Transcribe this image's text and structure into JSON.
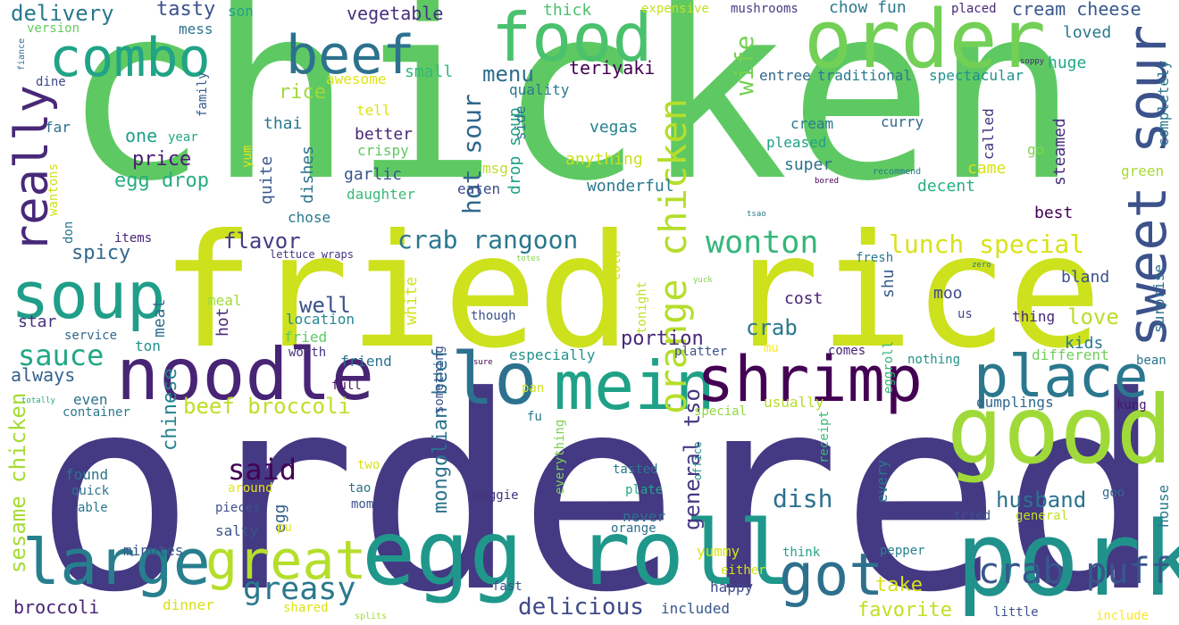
{
  "background": "#ffffff",
  "words": [
    {
      "text": "chicken",
      "color": "#5ec962",
      "rotate": false
    },
    {
      "text": "ordered",
      "color": "#443983",
      "rotate": false
    },
    {
      "text": "fried rice",
      "color": "#cde11d",
      "rotate": false
    },
    {
      "text": "pork",
      "color": "#21918c",
      "rotate": false
    },
    {
      "text": "good",
      "color": "#a0da39",
      "rotate": false
    },
    {
      "text": "egg roll",
      "color": "#1f988b",
      "rotate": false
    },
    {
      "text": "noodle",
      "color": "#482475",
      "rotate": false
    },
    {
      "text": "lo",
      "color": "#2c728e",
      "rotate": false
    },
    {
      "text": "mein",
      "color": "#1fa187",
      "rotate": false
    },
    {
      "text": "shrimp",
      "color": "#440154",
      "rotate": false
    },
    {
      "text": "place",
      "color": "#2a788e",
      "rotate": false
    },
    {
      "text": "order",
      "color": "#73d056",
      "rotate": false
    },
    {
      "text": "food",
      "color": "#4ac16d",
      "rotate": false
    },
    {
      "text": "sweet sour",
      "color": "#3b528b",
      "rotate": true
    },
    {
      "text": "large",
      "color": "#277f8e",
      "rotate": false
    },
    {
      "text": "great",
      "color": "#b5de2b",
      "rotate": false
    },
    {
      "text": "got",
      "color": "#2d708e",
      "rotate": false
    },
    {
      "text": "soup",
      "color": "#1f9e89",
      "rotate": false
    },
    {
      "text": "combo",
      "color": "#20a386",
      "rotate": false
    },
    {
      "text": "beef",
      "color": "#2c728e",
      "rotate": false
    },
    {
      "text": "really",
      "color": "#482878",
      "rotate": true
    },
    {
      "text": "crab puff",
      "color": "#39568c",
      "rotate": false
    },
    {
      "text": "wonton",
      "color": "#35b779",
      "rotate": false
    },
    {
      "text": "orange chicken",
      "color": "#b5de2b",
      "rotate": true
    },
    {
      "text": "greasy",
      "color": "#2a788e",
      "rotate": false
    },
    {
      "text": "crab rangoon",
      "color": "#2a788e",
      "rotate": false
    },
    {
      "text": "lunch special",
      "color": "#d8e219",
      "rotate": false
    },
    {
      "text": "sauce",
      "color": "#22a884",
      "rotate": false
    },
    {
      "text": "said",
      "color": "#440154",
      "rotate": false
    },
    {
      "text": "dish",
      "color": "#2c728e",
      "rotate": false
    },
    {
      "text": "husband",
      "color": "#2c728e",
      "rotate": false
    },
    {
      "text": "delicious",
      "color": "#3e4a89",
      "rotate": false
    },
    {
      "text": "wife",
      "color": "#75d054",
      "rotate": true
    },
    {
      "text": "hot sour",
      "color": "#31688e",
      "rotate": true
    },
    {
      "text": "beef broccoli",
      "color": "#bddf26",
      "rotate": false
    },
    {
      "text": "menu",
      "color": "#2e6e8e",
      "rotate": false
    },
    {
      "text": "flavor",
      "color": "#433e85",
      "rotate": false
    },
    {
      "text": "well",
      "color": "#3b528b",
      "rotate": false
    },
    {
      "text": "take",
      "color": "#d8e219",
      "rotate": false
    },
    {
      "text": "favorite",
      "color": "#c2df23",
      "rotate": false
    },
    {
      "text": "broccoli",
      "color": "#482475",
      "rotate": false
    },
    {
      "text": "crab",
      "color": "#2a788e",
      "rotate": false
    },
    {
      "text": "love",
      "color": "#b8de29",
      "rotate": false
    },
    {
      "text": "price",
      "color": "#481c6e",
      "rotate": false
    },
    {
      "text": "portion",
      "color": "#482878",
      "rotate": false
    },
    {
      "text": "mongolian beef",
      "color": "#2c728e",
      "rotate": true
    },
    {
      "text": "general tso",
      "color": "#443983",
      "rotate": true
    },
    {
      "text": "sesame chicken",
      "color": "#a5db36",
      "rotate": true
    },
    {
      "text": "chinese",
      "color": "#26828e",
      "rotate": true
    },
    {
      "text": "always",
      "color": "#35608d",
      "rotate": false
    },
    {
      "text": "spicy",
      "color": "#31688e",
      "rotate": false
    },
    {
      "text": "egg drop",
      "color": "#28ae80",
      "rotate": false
    },
    {
      "text": "delivery",
      "color": "#2a788e",
      "rotate": false
    },
    {
      "text": "tasty",
      "color": "#3b528b",
      "rotate": false
    },
    {
      "text": "rice",
      "color": "#a0da39",
      "rotate": false
    },
    {
      "text": "vegetable",
      "color": "#46327e",
      "rotate": false
    },
    {
      "text": "cream cheese",
      "color": "#38598c",
      "rotate": false
    },
    {
      "text": "chow fun",
      "color": "#2a788e",
      "rotate": false
    },
    {
      "text": "teriyaki",
      "color": "#440154",
      "rotate": false
    },
    {
      "text": "wonderful",
      "color": "#2a788e",
      "rotate": false
    },
    {
      "text": "better",
      "color": "#482878",
      "rotate": false
    },
    {
      "text": "garlic",
      "color": "#39568c",
      "rotate": false
    },
    {
      "text": "super",
      "color": "#2d708e",
      "rotate": false
    },
    {
      "text": "decent",
      "color": "#29af7f",
      "rotate": false
    },
    {
      "text": "came",
      "color": "#d8e219",
      "rotate": false
    },
    {
      "text": "best",
      "color": "#440154",
      "rotate": false
    },
    {
      "text": "steamed",
      "color": "#46327e",
      "rotate": true
    },
    {
      "text": "bland",
      "color": "#3b528b",
      "rotate": false
    },
    {
      "text": "cost",
      "color": "#482475",
      "rotate": false
    },
    {
      "text": "moo",
      "color": "#3e4a89",
      "rotate": false
    },
    {
      "text": "shu",
      "color": "#365c8d",
      "rotate": true
    },
    {
      "text": "kids",
      "color": "#2a788e",
      "rotate": false
    },
    {
      "text": "huge",
      "color": "#22a884",
      "rotate": false
    },
    {
      "text": "loved",
      "color": "#2a788e",
      "rotate": false
    },
    {
      "text": "one",
      "color": "#1f9e89",
      "rotate": false
    },
    {
      "text": "small",
      "color": "#35b779",
      "rotate": false
    },
    {
      "text": "quality",
      "color": "#2a788e",
      "rotate": false
    },
    {
      "text": "vegas",
      "color": "#26828e",
      "rotate": false
    },
    {
      "text": "anything",
      "color": "#c8e020",
      "rotate": false
    },
    {
      "text": "drop soup",
      "color": "#1fa187",
      "rotate": true
    },
    {
      "text": "eaten",
      "color": "#3e4a89",
      "rotate": false
    },
    {
      "text": "thai",
      "color": "#2a788e",
      "rotate": false
    },
    {
      "text": "quite",
      "color": "#38598c",
      "rotate": true
    },
    {
      "text": "dishes",
      "color": "#2c728e",
      "rotate": true
    },
    {
      "text": "chose",
      "color": "#2a788e",
      "rotate": false
    },
    {
      "text": "crispy",
      "color": "#5ec962",
      "rotate": false
    },
    {
      "text": "daughter",
      "color": "#3aba76",
      "rotate": false
    },
    {
      "text": "tell",
      "color": "#dde318",
      "rotate": false
    },
    {
      "text": "awesome",
      "color": "#dde318",
      "rotate": false
    },
    {
      "text": "msg",
      "color": "#bddf26",
      "rotate": false
    },
    {
      "text": "side",
      "color": "#2c728e",
      "rotate": true
    },
    {
      "text": "cream",
      "color": "#2a788e",
      "rotate": false
    },
    {
      "text": "pleased",
      "color": "#1fa187",
      "rotate": false
    },
    {
      "text": "curry",
      "color": "#31688e",
      "rotate": false
    },
    {
      "text": "called",
      "color": "#46327e",
      "rotate": true
    },
    {
      "text": "go",
      "color": "#84d44b",
      "rotate": false
    },
    {
      "text": "green",
      "color": "#a8db34",
      "rotate": false
    },
    {
      "text": "completely",
      "color": "#2a788e",
      "rotate": true
    },
    {
      "text": "entree",
      "color": "#31688e",
      "rotate": false
    },
    {
      "text": "traditional",
      "color": "#2a788e",
      "rotate": false
    },
    {
      "text": "spectacular",
      "color": "#21918c",
      "rotate": false
    },
    {
      "text": "mushrooms",
      "color": "#433e85",
      "rotate": false
    },
    {
      "text": "expensive",
      "color": "#c8e020",
      "rotate": false
    },
    {
      "text": "thick",
      "color": "#4ac16d",
      "rotate": false
    },
    {
      "text": "placed",
      "color": "#482878",
      "rotate": false
    },
    {
      "text": "son",
      "color": "#1fa187",
      "rotate": false
    },
    {
      "text": "mess",
      "color": "#2c728e",
      "rotate": false
    },
    {
      "text": "version",
      "color": "#63cb5f",
      "rotate": false
    },
    {
      "text": "dine",
      "color": "#3e4a89",
      "rotate": false
    },
    {
      "text": "family",
      "color": "#365c8d",
      "rotate": true
    },
    {
      "text": "far",
      "color": "#2d708e",
      "rotate": false
    },
    {
      "text": "year",
      "color": "#22a884",
      "rotate": false
    },
    {
      "text": "items",
      "color": "#482475",
      "rotate": false
    },
    {
      "text": "wantons",
      "color": "#d0e11c",
      "rotate": true
    },
    {
      "text": "don",
      "color": "#2a788e",
      "rotate": true
    },
    {
      "text": "lettuce wraps",
      "color": "#453581",
      "rotate": false
    },
    {
      "text": "yum",
      "color": "#e5e419",
      "rotate": true
    },
    {
      "text": "meal",
      "color": "#9fda3a",
      "rotate": false
    },
    {
      "text": "hot",
      "color": "#482878",
      "rotate": true
    },
    {
      "text": "meat",
      "color": "#2e6e8e",
      "rotate": true
    },
    {
      "text": "star",
      "color": "#46327e",
      "rotate": false
    },
    {
      "text": "service",
      "color": "#31688e",
      "rotate": false
    },
    {
      "text": "ton",
      "color": "#218f8d",
      "rotate": false
    },
    {
      "text": "location",
      "color": "#23898e",
      "rotate": false
    },
    {
      "text": "fried",
      "color": "#5ec962",
      "rotate": false
    },
    {
      "text": "worth",
      "color": "#46327e",
      "rotate": false
    },
    {
      "text": "friend",
      "color": "#2c728e",
      "rotate": false
    },
    {
      "text": "full",
      "color": "#481668",
      "rotate": false
    },
    {
      "text": "white",
      "color": "#d2e21b",
      "rotate": true
    },
    {
      "text": "though",
      "color": "#3b528b",
      "rotate": false
    },
    {
      "text": "especially",
      "color": "#21918c",
      "rotate": false
    },
    {
      "text": "platter",
      "color": "#3b528b",
      "rotate": false
    },
    {
      "text": "tonight",
      "color": "#c0df25",
      "rotate": true
    },
    {
      "text": "cold",
      "color": "#d0e11c",
      "rotate": true
    },
    {
      "text": "mu",
      "color": "#fde725",
      "rotate": false
    },
    {
      "text": "comes",
      "color": "#482475",
      "rotate": false
    },
    {
      "text": "eggroll",
      "color": "#35b779",
      "rotate": true
    },
    {
      "text": "nothing",
      "color": "#21918c",
      "rotate": false
    },
    {
      "text": "fresh",
      "color": "#2a788e",
      "rotate": false
    },
    {
      "text": "us",
      "color": "#3e4a89",
      "rotate": false
    },
    {
      "text": "thing",
      "color": "#482878",
      "rotate": false
    },
    {
      "text": "different",
      "color": "#70cf57",
      "rotate": false
    },
    {
      "text": "bean",
      "color": "#2c728e",
      "rotate": false
    },
    {
      "text": "surprise",
      "color": "#2e6e8e",
      "rotate": true
    },
    {
      "text": "something",
      "color": "#3b528b",
      "rotate": true
    },
    {
      "text": "pan",
      "color": "#cde11d",
      "rotate": false
    },
    {
      "text": "fu",
      "color": "#2a788e",
      "rotate": false
    },
    {
      "text": "special",
      "color": "#90d743",
      "rotate": false
    },
    {
      "text": "usually",
      "color": "#b5de2b",
      "rotate": false
    },
    {
      "text": "dumplings",
      "color": "#31688e",
      "rotate": false
    },
    {
      "text": "kung",
      "color": "#481668",
      "rotate": false
    },
    {
      "text": "receipt",
      "color": "#3aba76",
      "rotate": true
    },
    {
      "text": "office",
      "color": "#21918c",
      "rotate": true
    },
    {
      "text": "tasted",
      "color": "#2a788e",
      "rotate": false
    },
    {
      "text": "plate",
      "color": "#22a884",
      "rotate": false
    },
    {
      "text": "never",
      "color": "#2c728e",
      "rotate": false
    },
    {
      "text": "orange",
      "color": "#2e6e8e",
      "rotate": false
    },
    {
      "text": "everything",
      "color": "#7ad151",
      "rotate": true
    },
    {
      "text": "every",
      "color": "#2a788e",
      "rotate": true
    },
    {
      "text": "goo",
      "color": "#31688e",
      "rotate": false
    },
    {
      "text": "house",
      "color": "#2a788e",
      "rotate": true
    },
    {
      "text": "tried",
      "color": "#3b528b",
      "rotate": false
    },
    {
      "text": "general",
      "color": "#c2df23",
      "rotate": false
    },
    {
      "text": "two",
      "color": "#d8e219",
      "rotate": false
    },
    {
      "text": "around",
      "color": "#e5e419",
      "rotate": false
    },
    {
      "text": "tao",
      "color": "#2d708e",
      "rotate": false
    },
    {
      "text": "mom",
      "color": "#3b528b",
      "rotate": false
    },
    {
      "text": "egg",
      "color": "#35608d",
      "rotate": true
    },
    {
      "text": "pieces",
      "color": "#3b528b",
      "rotate": false
    },
    {
      "text": "veggie",
      "color": "#46327e",
      "rotate": false
    },
    {
      "text": "salty",
      "color": "#3b528b",
      "rotate": false
    },
    {
      "text": "pu",
      "color": "#e5e419",
      "rotate": false
    },
    {
      "text": "found",
      "color": "#2c728e",
      "rotate": false
    },
    {
      "text": "quick",
      "color": "#2c728e",
      "rotate": false
    },
    {
      "text": "able",
      "color": "#2a788e",
      "rotate": false
    },
    {
      "text": "minutes",
      "color": "#39568c",
      "rotate": false
    },
    {
      "text": "yummy",
      "color": "#d8e219",
      "rotate": false
    },
    {
      "text": "think",
      "color": "#20a386",
      "rotate": false
    },
    {
      "text": "pepper",
      "color": "#26828e",
      "rotate": false
    },
    {
      "text": "either",
      "color": "#d5e21a",
      "rotate": false
    },
    {
      "text": "happy",
      "color": "#3e4a89",
      "rotate": false
    },
    {
      "text": "fast",
      "color": "#3b528b",
      "rotate": false
    },
    {
      "text": "dinner",
      "color": "#d8e219",
      "rotate": false
    },
    {
      "text": "shared",
      "color": "#dde318",
      "rotate": false
    },
    {
      "text": "included",
      "color": "#39568c",
      "rotate": false
    },
    {
      "text": "little",
      "color": "#3b528b",
      "rotate": false
    },
    {
      "text": "include",
      "color": "#fde725",
      "rotate": false
    },
    {
      "text": "even",
      "color": "#2c728e",
      "rotate": false
    },
    {
      "text": "container",
      "color": "#2a788e",
      "rotate": false
    },
    {
      "text": "splits",
      "color": "#a8db34",
      "rotate": false
    },
    {
      "text": "fiance",
      "color": "#2c728e",
      "rotate": true
    },
    {
      "text": "totally",
      "color": "#22a884",
      "rotate": false
    },
    {
      "text": "sure",
      "color": "#440154",
      "rotate": false
    },
    {
      "text": "totes",
      "color": "#84d44b",
      "rotate": false
    },
    {
      "text": "yuck",
      "color": "#84d44b",
      "rotate": false
    },
    {
      "text": "zero",
      "color": "#2c728e",
      "rotate": false
    },
    {
      "text": "tsao",
      "color": "#2a788e",
      "rotate": false
    },
    {
      "text": "bored",
      "color": "#440154",
      "rotate": false
    },
    {
      "text": "recommend",
      "color": "#2a788e",
      "rotate": false
    },
    {
      "text": "soppy",
      "color": "#482475",
      "rotate": false
    }
  ]
}
